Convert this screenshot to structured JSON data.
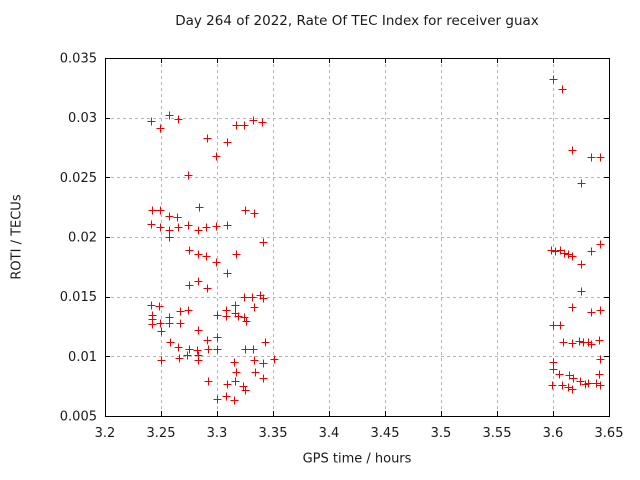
{
  "chart_data": {
    "type": "scatter",
    "title": "Day 264 of 2022, Rate Of TEC Index for receiver guax",
    "xlabel": "GPS time / hours",
    "ylabel": "ROTI / TECUs",
    "xlim": [
      3.2,
      3.65
    ],
    "ylim": [
      0.005,
      0.035
    ],
    "xticks": [
      3.2,
      3.25,
      3.3,
      3.35,
      3.4,
      3.45,
      3.5,
      3.55,
      3.6,
      3.65
    ],
    "xtick_labels": [
      "3.2",
      "3.25",
      "3.3",
      "3.35",
      "3.4",
      "3.45",
      "3.5",
      "3.55",
      "3.6",
      "3.65"
    ],
    "yticks": [
      0.005,
      0.01,
      0.015,
      0.02,
      0.025,
      0.03,
      0.035
    ],
    "ytick_labels": [
      "0.005",
      "0.01",
      "0.015",
      "0.02",
      "0.025",
      "0.03",
      "0.035"
    ],
    "grid": "dashed-major-both",
    "legend": "none",
    "marker": {
      "shape": "plus",
      "size": 9,
      "half": 4
    },
    "colors": {
      "marker": "#ee0000",
      "grid": "#b4b4b4",
      "axis": "#000000",
      "text": "#1a1a1a",
      "background": "#ffffff"
    },
    "series": [
      {
        "name": "ROTI",
        "points": [
          [
            3.241,
            0.0297
          ],
          [
            3.249,
            0.0291
          ],
          [
            3.257,
            0.0302
          ],
          [
            3.265,
            0.0299
          ],
          [
            3.291,
            0.0283
          ],
          [
            3.299,
            0.0268
          ],
          [
            3.309,
            0.028
          ],
          [
            3.317,
            0.0294
          ],
          [
            3.324,
            0.0294
          ],
          [
            3.332,
            0.0298
          ],
          [
            3.34,
            0.0296
          ],
          [
            3.274,
            0.0252
          ],
          [
            3.242,
            0.0223
          ],
          [
            3.249,
            0.0223
          ],
          [
            3.257,
            0.0218
          ],
          [
            3.264,
            0.0217
          ],
          [
            3.284,
            0.0225
          ],
          [
            3.325,
            0.0223
          ],
          [
            3.333,
            0.022
          ],
          [
            3.241,
            0.0211
          ],
          [
            3.249,
            0.0208
          ],
          [
            3.257,
            0.0206
          ],
          [
            3.265,
            0.0208
          ],
          [
            3.274,
            0.021
          ],
          [
            3.283,
            0.0206
          ],
          [
            3.29,
            0.0208
          ],
          [
            3.299,
            0.0209
          ],
          [
            3.309,
            0.021
          ],
          [
            3.257,
            0.02
          ],
          [
            3.341,
            0.0196
          ],
          [
            3.275,
            0.0189
          ],
          [
            3.283,
            0.0186
          ],
          [
            3.29,
            0.0184
          ],
          [
            3.299,
            0.0179
          ],
          [
            3.317,
            0.0186
          ],
          [
            3.309,
            0.017
          ],
          [
            3.275,
            0.016
          ],
          [
            3.283,
            0.0163
          ],
          [
            3.291,
            0.0157
          ],
          [
            3.324,
            0.015
          ],
          [
            3.331,
            0.015
          ],
          [
            3.338,
            0.0151
          ],
          [
            3.341,
            0.0149
          ],
          [
            3.241,
            0.0143
          ],
          [
            3.248,
            0.0142
          ],
          [
            3.267,
            0.0138
          ],
          [
            3.274,
            0.0139
          ],
          [
            3.242,
            0.0135
          ],
          [
            3.242,
            0.0131
          ],
          [
            3.242,
            0.0127
          ],
          [
            3.249,
            0.0128
          ],
          [
            3.257,
            0.0133
          ],
          [
            3.257,
            0.0128
          ],
          [
            3.267,
            0.0128
          ],
          [
            3.316,
            0.0143
          ],
          [
            3.333,
            0.0141
          ],
          [
            3.316,
            0.0136
          ],
          [
            3.319,
            0.0134
          ],
          [
            3.324,
            0.0133
          ],
          [
            3.3,
            0.0135
          ],
          [
            3.308,
            0.0139
          ],
          [
            3.308,
            0.0134
          ],
          [
            3.326,
            0.013
          ],
          [
            3.25,
            0.0121
          ],
          [
            3.283,
            0.0122
          ],
          [
            3.258,
            0.0112
          ],
          [
            3.291,
            0.0114
          ],
          [
            3.3,
            0.0116
          ],
          [
            3.265,
            0.0108
          ],
          [
            3.292,
            0.0106
          ],
          [
            3.3,
            0.0106
          ],
          [
            3.275,
            0.0106
          ],
          [
            3.282,
            0.0105
          ],
          [
            3.266,
            0.0099
          ],
          [
            3.273,
            0.0101
          ],
          [
            3.283,
            0.0101
          ],
          [
            3.283,
            0.0097
          ],
          [
            3.25,
            0.0097
          ],
          [
            3.325,
            0.0106
          ],
          [
            3.332,
            0.0106
          ],
          [
            3.343,
            0.0112
          ],
          [
            3.333,
            0.0097
          ],
          [
            3.341,
            0.0094
          ],
          [
            3.315,
            0.0095
          ],
          [
            3.351,
            0.0098
          ],
          [
            3.334,
            0.0087
          ],
          [
            3.317,
            0.0087
          ],
          [
            3.341,
            0.0082
          ],
          [
            3.292,
            0.0079
          ],
          [
            3.309,
            0.0077
          ],
          [
            3.316,
            0.0079
          ],
          [
            3.323,
            0.0075
          ],
          [
            3.325,
            0.0072
          ],
          [
            3.3,
            0.0064
          ],
          [
            3.308,
            0.0067
          ],
          [
            3.315,
            0.0063
          ],
          [
            3.6,
            0.0332
          ],
          [
            3.608,
            0.0324
          ],
          [
            3.617,
            0.0273
          ],
          [
            3.634,
            0.0267
          ],
          [
            3.642,
            0.0267
          ],
          [
            3.625,
            0.0245
          ],
          [
            3.642,
            0.0194
          ],
          [
            3.598,
            0.0189
          ],
          [
            3.602,
            0.0188
          ],
          [
            3.606,
            0.0189
          ],
          [
            3.61,
            0.0187
          ],
          [
            3.613,
            0.0186
          ],
          [
            3.617,
            0.0184
          ],
          [
            3.634,
            0.0188
          ],
          [
            3.625,
            0.0177
          ],
          [
            3.625,
            0.0155
          ],
          [
            3.617,
            0.0141
          ],
          [
            3.634,
            0.0137
          ],
          [
            3.642,
            0.0139
          ],
          [
            3.6,
            0.0126
          ],
          [
            3.606,
            0.0126
          ],
          [
            3.609,
            0.0112
          ],
          [
            3.617,
            0.0111
          ],
          [
            3.623,
            0.0113
          ],
          [
            3.627,
            0.0112
          ],
          [
            3.631,
            0.0112
          ],
          [
            3.634,
            0.011
          ],
          [
            3.641,
            0.0114
          ],
          [
            3.642,
            0.0098
          ],
          [
            3.6,
            0.0095
          ],
          [
            3.6,
            0.0089
          ],
          [
            3.605,
            0.0085
          ],
          [
            3.614,
            0.0084
          ],
          [
            3.618,
            0.0082
          ],
          [
            3.624,
            0.0079
          ],
          [
            3.629,
            0.0077
          ],
          [
            3.599,
            0.0076
          ],
          [
            3.608,
            0.0076
          ],
          [
            3.613,
            0.0074
          ],
          [
            3.617,
            0.0073
          ],
          [
            3.631,
            0.0078
          ],
          [
            3.638,
            0.0078
          ],
          [
            3.641,
            0.0085
          ],
          [
            3.642,
            0.0076
          ]
        ]
      }
    ]
  }
}
